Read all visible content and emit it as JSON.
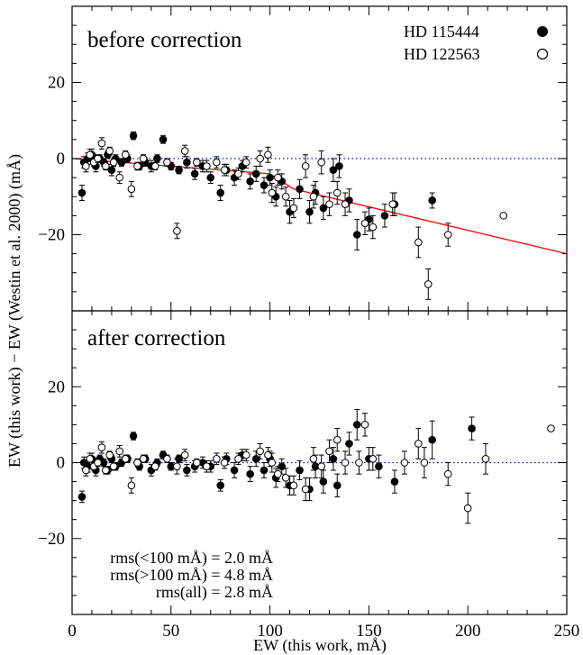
{
  "chart_data": [
    {
      "type": "scatter",
      "panel": "top",
      "title": "before correction",
      "xlabel": "EW (this work, mÅ)",
      "ylabel": "EW (this work) − EW (Westin et al. 2000) (mÅ)",
      "xlim": [
        0,
        250
      ],
      "ylim": [
        -40,
        40
      ],
      "grid": false,
      "legend_position": "top-right",
      "x_ticks": [
        "0",
        "50",
        "100",
        "150",
        "200",
        "250"
      ],
      "y_ticks": [
        "−20",
        "0",
        "20"
      ],
      "series": [
        {
          "name": "HD 115444",
          "marker": "filled-circle",
          "points": [
            [
              5,
              -9,
              2
            ],
            [
              6,
              -1,
              1.5
            ],
            [
              8,
              0,
              1.5
            ],
            [
              10,
              1,
              1.5
            ],
            [
              12,
              -2,
              1.5
            ],
            [
              14,
              0,
              1
            ],
            [
              16,
              -1,
              1
            ],
            [
              18,
              1,
              1
            ],
            [
              20,
              -3,
              1.5
            ],
            [
              22,
              0,
              1
            ],
            [
              25,
              -1,
              1
            ],
            [
              28,
              0,
              1
            ],
            [
              31,
              6,
              1
            ],
            [
              34,
              -2,
              1
            ],
            [
              37,
              -1,
              1
            ],
            [
              40,
              -2,
              1.5
            ],
            [
              43,
              0,
              1
            ],
            [
              46,
              5,
              1
            ],
            [
              50,
              -2,
              1
            ],
            [
              54,
              -3,
              1
            ],
            [
              58,
              -1,
              1.5
            ],
            [
              62,
              -4,
              1.5
            ],
            [
              66,
              -2,
              1.5
            ],
            [
              70,
              -5,
              1.5
            ],
            [
              75,
              -9,
              2
            ],
            [
              78,
              -3,
              1.5
            ],
            [
              82,
              -5,
              2
            ],
            [
              86,
              -2,
              1.5
            ],
            [
              90,
              -6,
              2
            ],
            [
              93,
              -4,
              2
            ],
            [
              97,
              -7,
              2
            ],
            [
              100,
              -5,
              2
            ],
            [
              103,
              -10,
              2.5
            ],
            [
              106,
              -6,
              2
            ],
            [
              110,
              -14,
              3
            ],
            [
              115,
              -8,
              2.5
            ],
            [
              120,
              -14,
              3
            ],
            [
              123,
              -9,
              3
            ],
            [
              127,
              -13,
              3
            ],
            [
              132,
              -3,
              3
            ],
            [
              135,
              -2,
              3
            ],
            [
              140,
              -11,
              3
            ],
            [
              144,
              -20,
              4
            ],
            [
              150,
              -16,
              3
            ],
            [
              158,
              -15,
              3
            ],
            [
              163,
              -12,
              3
            ],
            [
              182,
              -11,
              2
            ]
          ]
        },
        {
          "name": "HD 122563",
          "marker": "open-circle",
          "points": [
            [
              7,
              -2,
              1.5
            ],
            [
              9,
              1,
              1.5
            ],
            [
              11,
              -1,
              1
            ],
            [
              13,
              0,
              1
            ],
            [
              15,
              4,
              1.5
            ],
            [
              17,
              -2,
              1
            ],
            [
              19,
              2,
              1
            ],
            [
              21,
              -1,
              1
            ],
            [
              24,
              -5,
              1.5
            ],
            [
              27,
              1,
              1
            ],
            [
              30,
              -8,
              2
            ],
            [
              33,
              -2,
              1
            ],
            [
              36,
              0,
              1
            ],
            [
              42,
              -2,
              1
            ],
            [
              48,
              -1,
              1
            ],
            [
              53,
              -19,
              2
            ],
            [
              57,
              2,
              1.5
            ],
            [
              63,
              -1,
              1
            ],
            [
              68,
              -2,
              1.5
            ],
            [
              73,
              -1,
              1.5
            ],
            [
              77,
              -3,
              1.5
            ],
            [
              84,
              -4,
              1.5
            ],
            [
              88,
              -1,
              1.5
            ],
            [
              95,
              0,
              2
            ],
            [
              99,
              1,
              2
            ],
            [
              101,
              -9,
              2.5
            ],
            [
              104,
              -5,
              2
            ],
            [
              108,
              -10,
              2.5
            ],
            [
              112,
              -13,
              2.5
            ],
            [
              118,
              -2,
              3
            ],
            [
              122,
              -10,
              3
            ],
            [
              126,
              -1,
              3
            ],
            [
              130,
              -12,
              3
            ],
            [
              134,
              -9,
              3
            ],
            [
              138,
              -12,
              3
            ],
            [
              148,
              -17,
              3
            ],
            [
              152,
              -18,
              3
            ],
            [
              162,
              -12,
              3
            ],
            [
              175,
              -22,
              4
            ],
            [
              180,
              -33,
              4
            ],
            [
              190,
              -20,
              3
            ],
            [
              218,
              -15,
              0.5
            ]
          ]
        }
      ],
      "fit_line": {
        "color": "#ff0000",
        "points": [
          [
            0,
            0
          ],
          [
            100,
            -4
          ],
          [
            112,
            -8
          ],
          [
            250,
            -25
          ]
        ]
      },
      "zero_line": {
        "y": 0,
        "color": "#0000cc",
        "style": "dotted"
      }
    },
    {
      "type": "scatter",
      "panel": "bottom",
      "title": "after correction",
      "xlabel": "EW (this work, mÅ)",
      "xlim": [
        0,
        250
      ],
      "ylim": [
        -40,
        40
      ],
      "grid": false,
      "x_ticks": [
        "0",
        "50",
        "100",
        "150",
        "200",
        "250"
      ],
      "y_ticks": [
        "−20",
        "0",
        "20"
      ],
      "annotations": [
        "rms(<100 mÅ) = 2.0 mÅ",
        "rms(>100 mÅ) = 4.8 mÅ",
        "rms(all) = 2.8 mÅ"
      ],
      "series": [
        {
          "name": "HD 115444",
          "marker": "filled-circle",
          "points": [
            [
              5,
              -9,
              1.5
            ],
            [
              6,
              0,
              1.5
            ],
            [
              8,
              -1,
              1.5
            ],
            [
              10,
              1,
              1.5
            ],
            [
              12,
              -2,
              1.5
            ],
            [
              14,
              1,
              1
            ],
            [
              16,
              0,
              1
            ],
            [
              18,
              -2,
              1
            ],
            [
              20,
              1,
              1
            ],
            [
              22,
              -1,
              1
            ],
            [
              25,
              0,
              1
            ],
            [
              28,
              1,
              1
            ],
            [
              31,
              7,
              1
            ],
            [
              34,
              -1,
              1
            ],
            [
              37,
              1,
              1
            ],
            [
              40,
              -2,
              1.5
            ],
            [
              43,
              0,
              1
            ],
            [
              46,
              2,
              1
            ],
            [
              50,
              -1,
              1
            ],
            [
              54,
              1,
              1
            ],
            [
              58,
              -2,
              1.5
            ],
            [
              62,
              -1,
              1.5
            ],
            [
              66,
              0,
              1.5
            ],
            [
              70,
              -1,
              1.5
            ],
            [
              75,
              -6,
              1.5
            ],
            [
              78,
              1,
              1.5
            ],
            [
              82,
              -2,
              2
            ],
            [
              86,
              2,
              1.5
            ],
            [
              90,
              -3,
              2
            ],
            [
              93,
              1,
              2
            ],
            [
              97,
              -2,
              2
            ],
            [
              100,
              1,
              2
            ],
            [
              103,
              -4,
              2.5
            ],
            [
              106,
              -1,
              2
            ],
            [
              110,
              -6,
              2.5
            ],
            [
              115,
              -2,
              2.5
            ],
            [
              120,
              -7,
              3
            ],
            [
              123,
              -1,
              3
            ],
            [
              127,
              -5,
              3
            ],
            [
              132,
              1,
              3
            ],
            [
              134,
              -6,
              3
            ],
            [
              140,
              5,
              3
            ],
            [
              144,
              10,
              4
            ],
            [
              150,
              1,
              3
            ],
            [
              155,
              -1,
              3
            ],
            [
              163,
              -5,
              3
            ],
            [
              182,
              6,
              5
            ],
            [
              202,
              9,
              3
            ]
          ]
        },
        {
          "name": "HD 122563",
          "marker": "open-circle",
          "points": [
            [
              7,
              -2,
              1.5
            ],
            [
              9,
              1,
              1.5
            ],
            [
              11,
              -1,
              1
            ],
            [
              13,
              0,
              1
            ],
            [
              15,
              4,
              1.5
            ],
            [
              17,
              -2,
              1
            ],
            [
              19,
              2,
              1
            ],
            [
              21,
              -1,
              1
            ],
            [
              24,
              3,
              1.5
            ],
            [
              27,
              1,
              1
            ],
            [
              30,
              -6,
              2
            ],
            [
              33,
              0,
              1
            ],
            [
              36,
              1,
              1
            ],
            [
              42,
              -1,
              1
            ],
            [
              48,
              1,
              1
            ],
            [
              53,
              -1,
              2
            ],
            [
              57,
              2,
              1.5
            ],
            [
              63,
              0,
              1
            ],
            [
              68,
              -1,
              1.5
            ],
            [
              73,
              1,
              1.5
            ],
            [
              77,
              0,
              1.5
            ],
            [
              84,
              1,
              1.5
            ],
            [
              88,
              2,
              1.5
            ],
            [
              95,
              3,
              2
            ],
            [
              99,
              2,
              2
            ],
            [
              101,
              0,
              2.5
            ],
            [
              104,
              -3,
              2
            ],
            [
              108,
              -4,
              2.5
            ],
            [
              112,
              -6,
              2.5
            ],
            [
              118,
              -7,
              3
            ],
            [
              122,
              1,
              3
            ],
            [
              126,
              -1,
              3
            ],
            [
              130,
              3,
              3
            ],
            [
              134,
              6,
              3
            ],
            [
              138,
              0,
              3
            ],
            [
              145,
              0,
              3
            ],
            [
              148,
              10,
              3
            ],
            [
              152,
              1,
              3
            ],
            [
              168,
              0,
              3
            ],
            [
              175,
              5,
              4
            ],
            [
              178,
              0,
              4
            ],
            [
              190,
              -3,
              3
            ],
            [
              200,
              -12,
              4
            ],
            [
              209,
              1,
              4
            ],
            [
              242,
              9,
              0.5
            ]
          ]
        }
      ],
      "zero_line": {
        "y": 0,
        "color": "#0000cc",
        "style": "dotted"
      }
    }
  ]
}
